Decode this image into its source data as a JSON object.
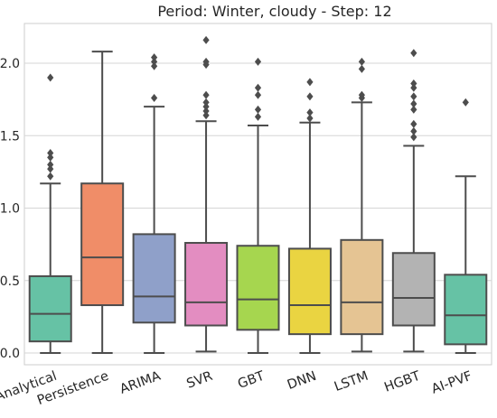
{
  "chart_data": {
    "type": "box",
    "title": "Period: Winter, cloudy - Step: 12",
    "xlabel": "",
    "ylabel": "",
    "ylim": [
      -0.05,
      2.3
    ],
    "yticks": [
      "0.0",
      "0.5",
      "1.0",
      "1.5",
      "2.0"
    ],
    "ytick_values": [
      0.0,
      0.5,
      1.0,
      1.5,
      2.0
    ],
    "grid": true,
    "categories": [
      "Analytical",
      "Persistence",
      "ARIMA",
      "SVR",
      "GBT",
      "DNN",
      "LSTM",
      "HGBT",
      "AI-PVF"
    ],
    "colors": [
      "#66c2a5",
      "#f08d68",
      "#8fa0c9",
      "#e38dc1",
      "#a6d64f",
      "#ead441",
      "#e5c493",
      "#b3b3b3",
      "#66c2a5"
    ],
    "boxes": [
      {
        "name": "Analytical",
        "min": 0.0,
        "q1": 0.08,
        "median": 0.27,
        "q3": 0.53,
        "max": 1.17,
        "outliers": [
          1.22,
          1.27,
          1.3,
          1.35,
          1.38,
          1.9
        ]
      },
      {
        "name": "Persistence",
        "min": 0.0,
        "q1": 0.33,
        "median": 0.66,
        "q3": 1.17,
        "max": 2.08,
        "outliers": []
      },
      {
        "name": "ARIMA",
        "min": 0.0,
        "q1": 0.21,
        "median": 0.39,
        "q3": 0.82,
        "max": 1.7,
        "outliers": [
          1.76,
          1.98,
          2.01,
          2.04
        ]
      },
      {
        "name": "SVR",
        "min": 0.01,
        "q1": 0.19,
        "median": 0.35,
        "q3": 0.76,
        "max": 1.6,
        "outliers": [
          1.64,
          1.67,
          1.7,
          1.73,
          1.78,
          1.99,
          2.01,
          2.16
        ]
      },
      {
        "name": "GBT",
        "min": 0.0,
        "q1": 0.16,
        "median": 0.37,
        "q3": 0.74,
        "max": 1.57,
        "outliers": [
          1.63,
          1.68,
          1.78,
          1.83,
          2.01
        ]
      },
      {
        "name": "DNN",
        "min": 0.0,
        "q1": 0.13,
        "median": 0.33,
        "q3": 0.72,
        "max": 1.59,
        "outliers": [
          1.62,
          1.66,
          1.77,
          1.87
        ]
      },
      {
        "name": "LSTM",
        "min": 0.01,
        "q1": 0.13,
        "median": 0.35,
        "q3": 0.78,
        "max": 1.73,
        "outliers": [
          1.76,
          1.78,
          1.96,
          2.01
        ]
      },
      {
        "name": "HGBT",
        "min": 0.01,
        "q1": 0.19,
        "median": 0.38,
        "q3": 0.69,
        "max": 1.43,
        "outliers": [
          1.49,
          1.53,
          1.58,
          1.68,
          1.72,
          1.77,
          1.83,
          1.86,
          2.07
        ]
      },
      {
        "name": "AI-PVF",
        "min": 0.0,
        "q1": 0.06,
        "median": 0.26,
        "q3": 0.54,
        "max": 1.22,
        "outliers": [
          1.73
        ]
      }
    ]
  }
}
